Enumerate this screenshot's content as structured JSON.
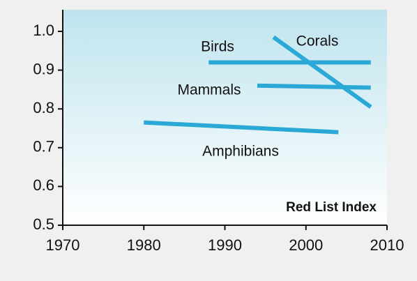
{
  "chart_data": {
    "type": "line",
    "annotation": "Red List Index",
    "color": "#2aa8d6",
    "series": [
      {
        "name": "Birds",
        "x": [
          1988,
          2008
        ],
        "values": [
          0.92,
          0.92
        ]
      },
      {
        "name": "Corals",
        "x": [
          1996,
          2008
        ],
        "values": [
          0.985,
          0.805
        ]
      },
      {
        "name": "Mammals",
        "x": [
          1994,
          2008
        ],
        "values": [
          0.86,
          0.855
        ]
      },
      {
        "name": "Amphibians",
        "x": [
          1980,
          2004
        ],
        "values": [
          0.765,
          0.74
        ]
      }
    ],
    "xlim": [
      1970,
      2010
    ],
    "xticks": [
      1970,
      1980,
      1990,
      2000,
      2010
    ],
    "ylim": [
      0.5,
      1.0
    ],
    "yticks": [
      0.5,
      0.6,
      0.7,
      0.8,
      0.9,
      {
        "value": 1,
        "label": "1.0"
      }
    ]
  }
}
